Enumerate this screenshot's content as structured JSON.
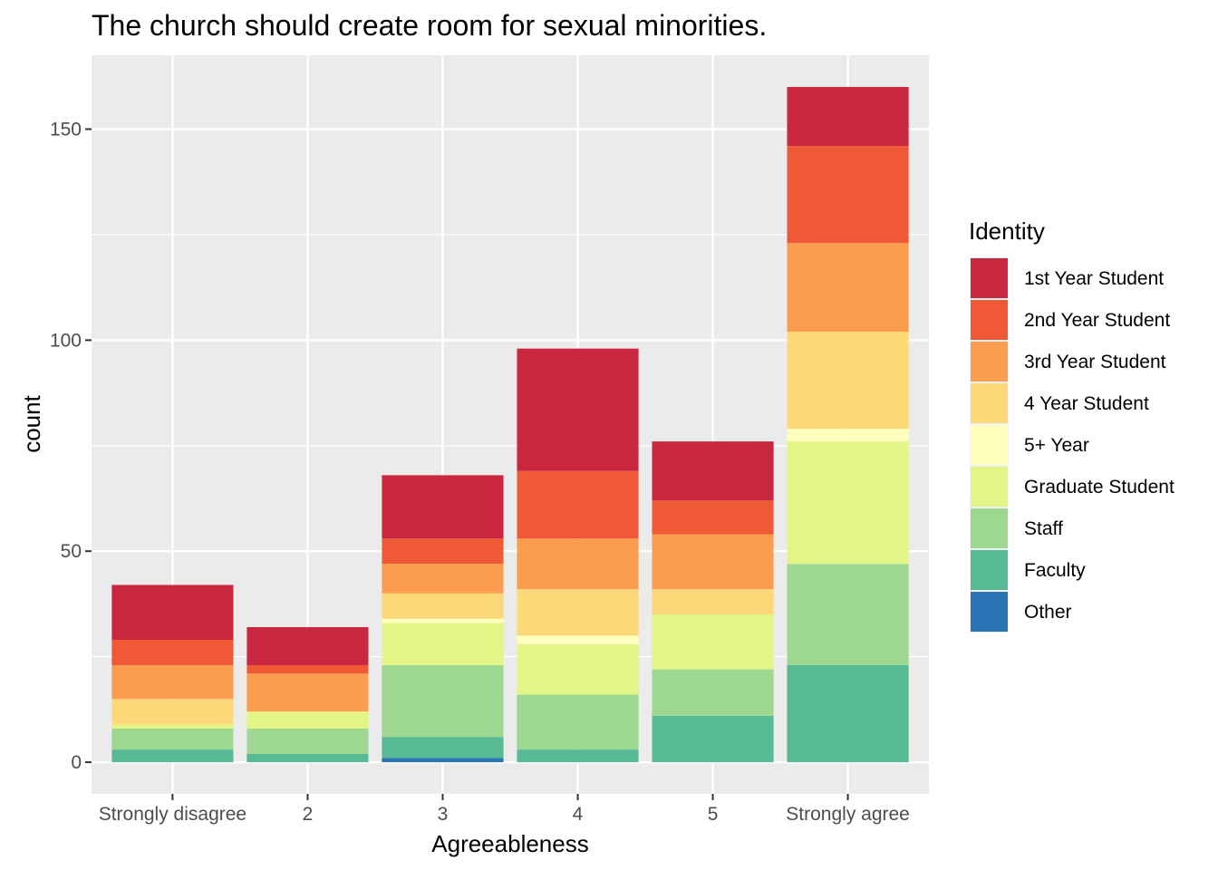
{
  "chart_data": {
    "type": "bar",
    "stacked": true,
    "title": "The church should create room for sexual minorities.",
    "xlabel": "Agreeableness",
    "ylabel": "count",
    "categories": [
      "Strongly disagree",
      "2",
      "3",
      "4",
      "5",
      "Strongly agree"
    ],
    "ylim": [
      -7.5,
      167.5
    ],
    "yticks": [
      0,
      50,
      100,
      150
    ],
    "grid": true,
    "legend": {
      "title": "Identity",
      "position": "right"
    },
    "series": [
      {
        "name": "Other",
        "color": "#2B74B4",
        "values": [
          0,
          0,
          1,
          0,
          0,
          0
        ]
      },
      {
        "name": "Faculty",
        "color": "#58BA94",
        "values": [
          3,
          2,
          5,
          3,
          11,
          23
        ]
      },
      {
        "name": "Staff",
        "color": "#9ED790",
        "values": [
          5,
          6,
          17,
          13,
          11,
          24
        ]
      },
      {
        "name": "Graduate Student",
        "color": "#E2F586",
        "values": [
          1,
          4,
          10,
          12,
          13,
          29
        ]
      },
      {
        "name": "5+ Year",
        "color": "#FFFFBE",
        "values": [
          0,
          0,
          1,
          2,
          0,
          3
        ]
      },
      {
        "name": "4 Year Student",
        "color": "#FDD879",
        "values": [
          6,
          0,
          6,
          11,
          6,
          23
        ]
      },
      {
        "name": "3rd Year Student",
        "color": "#FB9D4F",
        "values": [
          8,
          9,
          7,
          12,
          13,
          21
        ]
      },
      {
        "name": "2nd Year Student",
        "color": "#F05935",
        "values": [
          6,
          2,
          6,
          16,
          8,
          23
        ]
      },
      {
        "name": "1st Year Student",
        "color": "#C9263F",
        "values": [
          13,
          9,
          15,
          29,
          14,
          14
        ]
      }
    ]
  }
}
